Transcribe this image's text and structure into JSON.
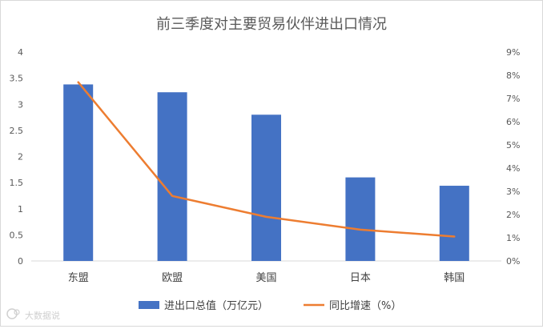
{
  "chart_data": {
    "type": "bar",
    "title": "前三季度对主要贸易伙伴进出口情况",
    "categories": [
      "东盟",
      "欧盟",
      "美国",
      "日本",
      "韩国"
    ],
    "series": [
      {
        "name": "进出口总值（万亿元）",
        "type": "bar",
        "axis": "left",
        "color": "#4472c4",
        "values": [
          3.38,
          3.23,
          2.8,
          1.6,
          1.44
        ]
      },
      {
        "name": "同比增速（%）",
        "type": "line",
        "axis": "right",
        "color": "#ed7d31",
        "values": [
          7.7,
          2.8,
          1.9,
          1.35,
          1.05
        ]
      }
    ],
    "y_left": {
      "min": 0,
      "max": 4,
      "ticks": [
        "0",
        "0.5",
        "1",
        "1.5",
        "2",
        "2.5",
        "3",
        "3.5",
        "4"
      ]
    },
    "y_right": {
      "min": 0,
      "max": 9,
      "ticks": [
        "0%",
        "1%",
        "2%",
        "3%",
        "4%",
        "5%",
        "6%",
        "7%",
        "8%",
        "9%"
      ]
    },
    "grid": false,
    "legend_position": "bottom"
  },
  "watermark": {
    "text": "大数据说",
    "logo": "watermark-logo"
  }
}
